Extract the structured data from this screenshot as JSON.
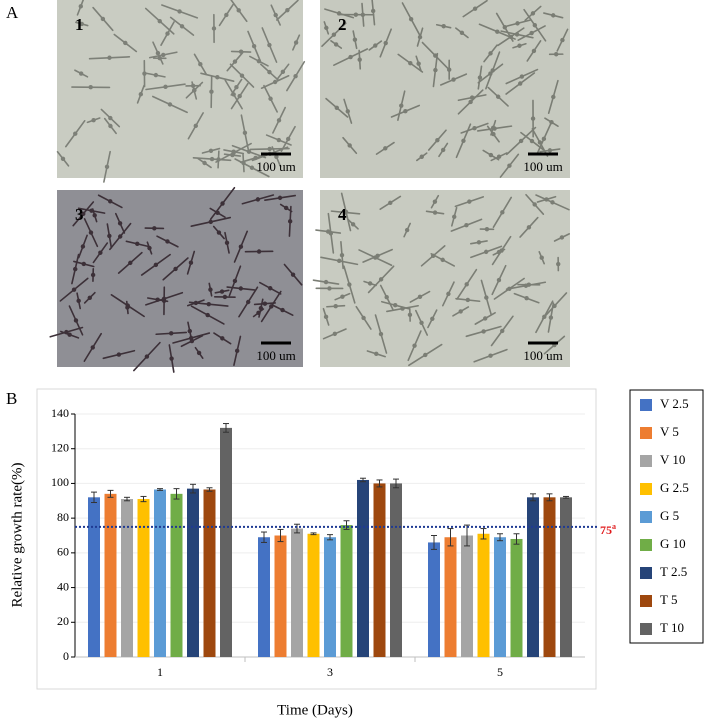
{
  "panel_a": {
    "label": "A",
    "images": [
      {
        "label": "1",
        "scale_bar": "100 um"
      },
      {
        "label": "2",
        "scale_bar": "100 um"
      },
      {
        "label": "3",
        "scale_bar": "100 um"
      },
      {
        "label": "4",
        "scale_bar": "100 um"
      }
    ]
  },
  "panel_b": {
    "label": "B"
  },
  "chart_data": {
    "type": "bar",
    "x_label": "Time (Days)",
    "y_label": "Relative growth rate(%)",
    "categories": [
      "1",
      "3",
      "5"
    ],
    "ylim": [
      0,
      140
    ],
    "yticks": [
      0,
      20,
      40,
      60,
      80,
      100,
      120,
      140
    ],
    "grid": true,
    "legend": "right",
    "reference_line": {
      "value": 75,
      "label": "75",
      "superscript": "a",
      "color": "#1f3a93",
      "label_color": "#e0191b"
    },
    "series": [
      {
        "name": "V 2.5",
        "color": "#4472c4",
        "values": [
          92,
          69,
          66
        ],
        "errors": [
          3,
          3,
          4
        ]
      },
      {
        "name": "V 5",
        "color": "#ed7d31",
        "values": [
          94,
          70,
          69
        ],
        "errors": [
          2,
          3.5,
          5
        ]
      },
      {
        "name": "V 10",
        "color": "#a5a5a5",
        "values": [
          91,
          74,
          70
        ],
        "errors": [
          1,
          2.5,
          6
        ]
      },
      {
        "name": "G 2.5",
        "color": "#ffc000",
        "values": [
          91,
          71,
          71
        ],
        "errors": [
          1.5,
          0.5,
          3
        ]
      },
      {
        "name": "G 5",
        "color": "#5b9bd5",
        "values": [
          96.5,
          69,
          69
        ],
        "errors": [
          0.5,
          1.5,
          2
        ]
      },
      {
        "name": "G 10",
        "color": "#70ad47",
        "values": [
          94,
          76,
          68
        ],
        "errors": [
          3,
          2.5,
          3
        ]
      },
      {
        "name": "T 2.5",
        "color": "#264478",
        "values": [
          97,
          102,
          92
        ],
        "errors": [
          2.5,
          1,
          2
        ]
      },
      {
        "name": "T 5",
        "color": "#9e480e",
        "values": [
          96.5,
          100,
          92
        ],
        "errors": [
          1,
          2,
          2
        ]
      },
      {
        "name": "T 10",
        "color": "#636363",
        "values": [
          132,
          100,
          92
        ],
        "errors": [
          2.5,
          2.5,
          0.5
        ]
      }
    ]
  }
}
